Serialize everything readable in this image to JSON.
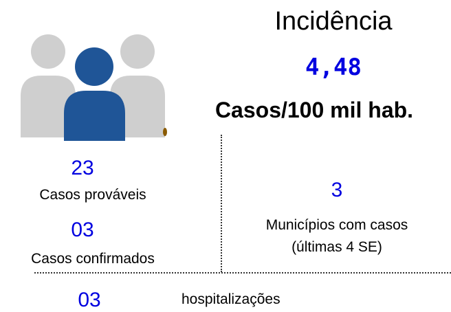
{
  "incidence": {
    "title": "Incidência",
    "value": "4,48",
    "unit": "Casos/100 mil hab."
  },
  "probable": {
    "value": "23",
    "label": "Casos prováveis"
  },
  "confirmed": {
    "value": "03",
    "label": "Casos confirmados"
  },
  "municipalities": {
    "value": "3",
    "label": "Municípios com casos",
    "note": "(últimas 4 SE)"
  },
  "hospitalizations": {
    "value": "03",
    "label": "hospitalizações"
  }
}
